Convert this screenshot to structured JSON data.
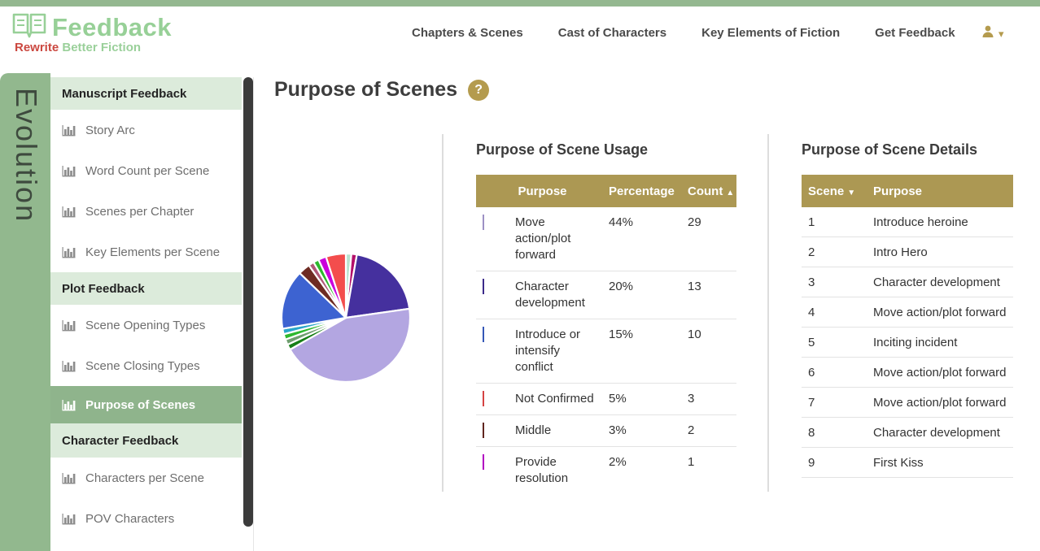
{
  "app": {
    "accent_color": "#94b890",
    "gold_color": "#ac9853",
    "active_green": "#8fb48c"
  },
  "header": {
    "logo": {
      "title": "Feedback",
      "tagline_word1": "Rewrite",
      "tagline_rest": " Better Fiction"
    },
    "nav": [
      {
        "label": "Chapters & Scenes"
      },
      {
        "label": "Cast of Characters"
      },
      {
        "label": "Key Elements of Fiction"
      },
      {
        "label": "Get Feedback"
      }
    ],
    "user_menu": {
      "caret": "▾"
    }
  },
  "sidebar": {
    "vertical_label": "Evolution",
    "entries": [
      {
        "type": "header",
        "label": "Manuscript Feedback"
      },
      {
        "type": "item",
        "label": "Story Arc"
      },
      {
        "type": "item",
        "label": "Word Count per Scene"
      },
      {
        "type": "item",
        "label": "Scenes per Chapter"
      },
      {
        "type": "item",
        "label": "Key Elements per Scene"
      },
      {
        "type": "header",
        "label": "Plot Feedback"
      },
      {
        "type": "item",
        "label": "Scene Opening Types"
      },
      {
        "type": "item",
        "label": "Scene Closing Types"
      },
      {
        "type": "item",
        "label": "Purpose of Scenes",
        "active": true
      },
      {
        "type": "header",
        "label": "Character Feedback"
      },
      {
        "type": "item",
        "label": "Characters per Scene"
      },
      {
        "type": "item",
        "label": "POV Characters"
      }
    ]
  },
  "main": {
    "title": "Purpose of Scenes",
    "help_icon": "?",
    "usage_panel": {
      "heading": "Purpose of Scene Usage",
      "columns": {
        "purpose": "Purpose",
        "percentage": "Percentage",
        "count": "Count",
        "count_sort_icon": "▲"
      },
      "rows": [
        {
          "color": "#b3a6e1",
          "purpose": "Move action/plot forward",
          "percentage": "44%",
          "count": "29"
        },
        {
          "color": "#45309e",
          "purpose": "Character development",
          "percentage": "20%",
          "count": "13"
        },
        {
          "color": "#3d63d1",
          "purpose": "Introduce or intensify conflict",
          "percentage": "15%",
          "count": "10"
        },
        {
          "color": "#f34d4d",
          "purpose": "Not Confirmed",
          "percentage": "5%",
          "count": "3"
        },
        {
          "color": "#6e2b23",
          "purpose": "Middle",
          "percentage": "3%",
          "count": "2"
        },
        {
          "color": "#ca00dc",
          "purpose": "Provide resolution",
          "percentage": "2%",
          "count": "1"
        }
      ]
    },
    "details_panel": {
      "heading": "Purpose of Scene Details",
      "columns": {
        "scene": "Scene",
        "scene_sort_icon": "▼",
        "purpose": "Purpose"
      },
      "rows": [
        {
          "scene": "1",
          "purpose": "Introduce heroine"
        },
        {
          "scene": "2",
          "purpose": "Intro Hero"
        },
        {
          "scene": "3",
          "purpose": "Character development"
        },
        {
          "scene": "4",
          "purpose": "Move action/plot forward"
        },
        {
          "scene": "5",
          "purpose": "Inciting incident"
        },
        {
          "scene": "6",
          "purpose": "Move action/plot forward"
        },
        {
          "scene": "7",
          "purpose": "Move action/plot forward"
        },
        {
          "scene": "8",
          "purpose": "Character development"
        },
        {
          "scene": "9",
          "purpose": "First Kiss"
        }
      ]
    }
  },
  "chart_data": {
    "type": "pie",
    "title": "Purpose of Scene Usage",
    "legend_position": "table-right",
    "start_angle_deg": -90,
    "direction": "clockwise",
    "slices": [
      {
        "label": "",
        "color": "#b9e2cf",
        "value": 1.375
      },
      {
        "label": "",
        "color": "#b3106a",
        "value": 1.375
      },
      {
        "label": "Character development",
        "color": "#45309e",
        "value": 20
      },
      {
        "label": "Move action/plot forward",
        "color": "#b3a6e1",
        "value": 44
      },
      {
        "label": "",
        "color": "#177f17",
        "value": 1.375
      },
      {
        "label": "",
        "color": "#6f9e6f",
        "value": 1.375
      },
      {
        "label": "",
        "color": "#2eb82e",
        "value": 1.375
      },
      {
        "label": "",
        "color": "#2aa6c9",
        "value": 1.375
      },
      {
        "label": "Introduce or intensify conflict",
        "color": "#3d63d1",
        "value": 15
      },
      {
        "label": "Middle",
        "color": "#6e2b23",
        "value": 3
      },
      {
        "label": "",
        "color": "#b05878",
        "value": 1.375
      },
      {
        "label": "",
        "color": "#2eb82e",
        "value": 1.375
      },
      {
        "label": "Provide resolution",
        "color": "#ca00dc",
        "value": 2
      },
      {
        "label": "Not Confirmed",
        "color": "#f34d4d",
        "value": 5
      }
    ]
  }
}
